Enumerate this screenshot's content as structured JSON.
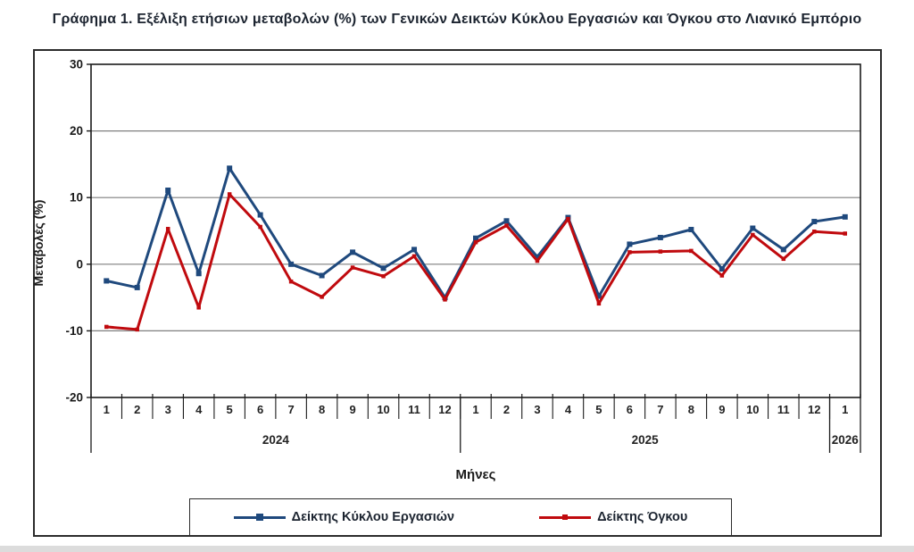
{
  "chart_data": {
    "type": "line",
    "title": "Γράφημα 1. Εξέλιξη ετήσιων μεταβολών (%) των Γενικών Δεικτών Κύκλου Εργασιών και Όγκου στο Λιανικό Εμπόριο",
    "ylabel": "Μεταβολές (%)",
    "xlabel": "Μήνες",
    "ylim": [
      -20,
      30
    ],
    "yticks": [
      30,
      20,
      10,
      0,
      -10,
      -20
    ],
    "grid": true,
    "legend_position": "bottom",
    "x_months": [
      "1",
      "2",
      "3",
      "4",
      "5",
      "6",
      "7",
      "8",
      "9",
      "10",
      "11",
      "12",
      "1",
      "2",
      "3",
      "4",
      "5",
      "6",
      "7",
      "8",
      "9",
      "10",
      "11",
      "12",
      "1"
    ],
    "x_year_groups": [
      {
        "label": "2024",
        "span": 12
      },
      {
        "label": "2025",
        "span": 12
      },
      {
        "label": "2026",
        "span": 1
      }
    ],
    "series": [
      {
        "name": "Δείκτης Κύκλου Εργασιών",
        "color": "#1F497D",
        "marker": "square",
        "values": [
          -2.5,
          -3.5,
          11.1,
          -1.4,
          14.4,
          7.4,
          0.0,
          -1.7,
          1.8,
          -0.6,
          2.2,
          -5.0,
          3.9,
          6.5,
          1.1,
          7.0,
          -4.8,
          3.0,
          4.0,
          5.2,
          -0.7,
          5.4,
          2.2,
          6.4,
          7.1
        ]
      },
      {
        "name": "Δείκτης Όγκου",
        "color": "#C00A0E",
        "marker": "square",
        "values": [
          -9.4,
          -9.8,
          5.3,
          -6.5,
          10.5,
          5.6,
          -2.6,
          -4.9,
          -0.5,
          -1.8,
          1.2,
          -5.3,
          3.3,
          5.8,
          0.5,
          6.8,
          -5.9,
          1.8,
          1.9,
          2.0,
          -1.7,
          4.4,
          0.8,
          4.9,
          4.6
        ]
      }
    ]
  }
}
